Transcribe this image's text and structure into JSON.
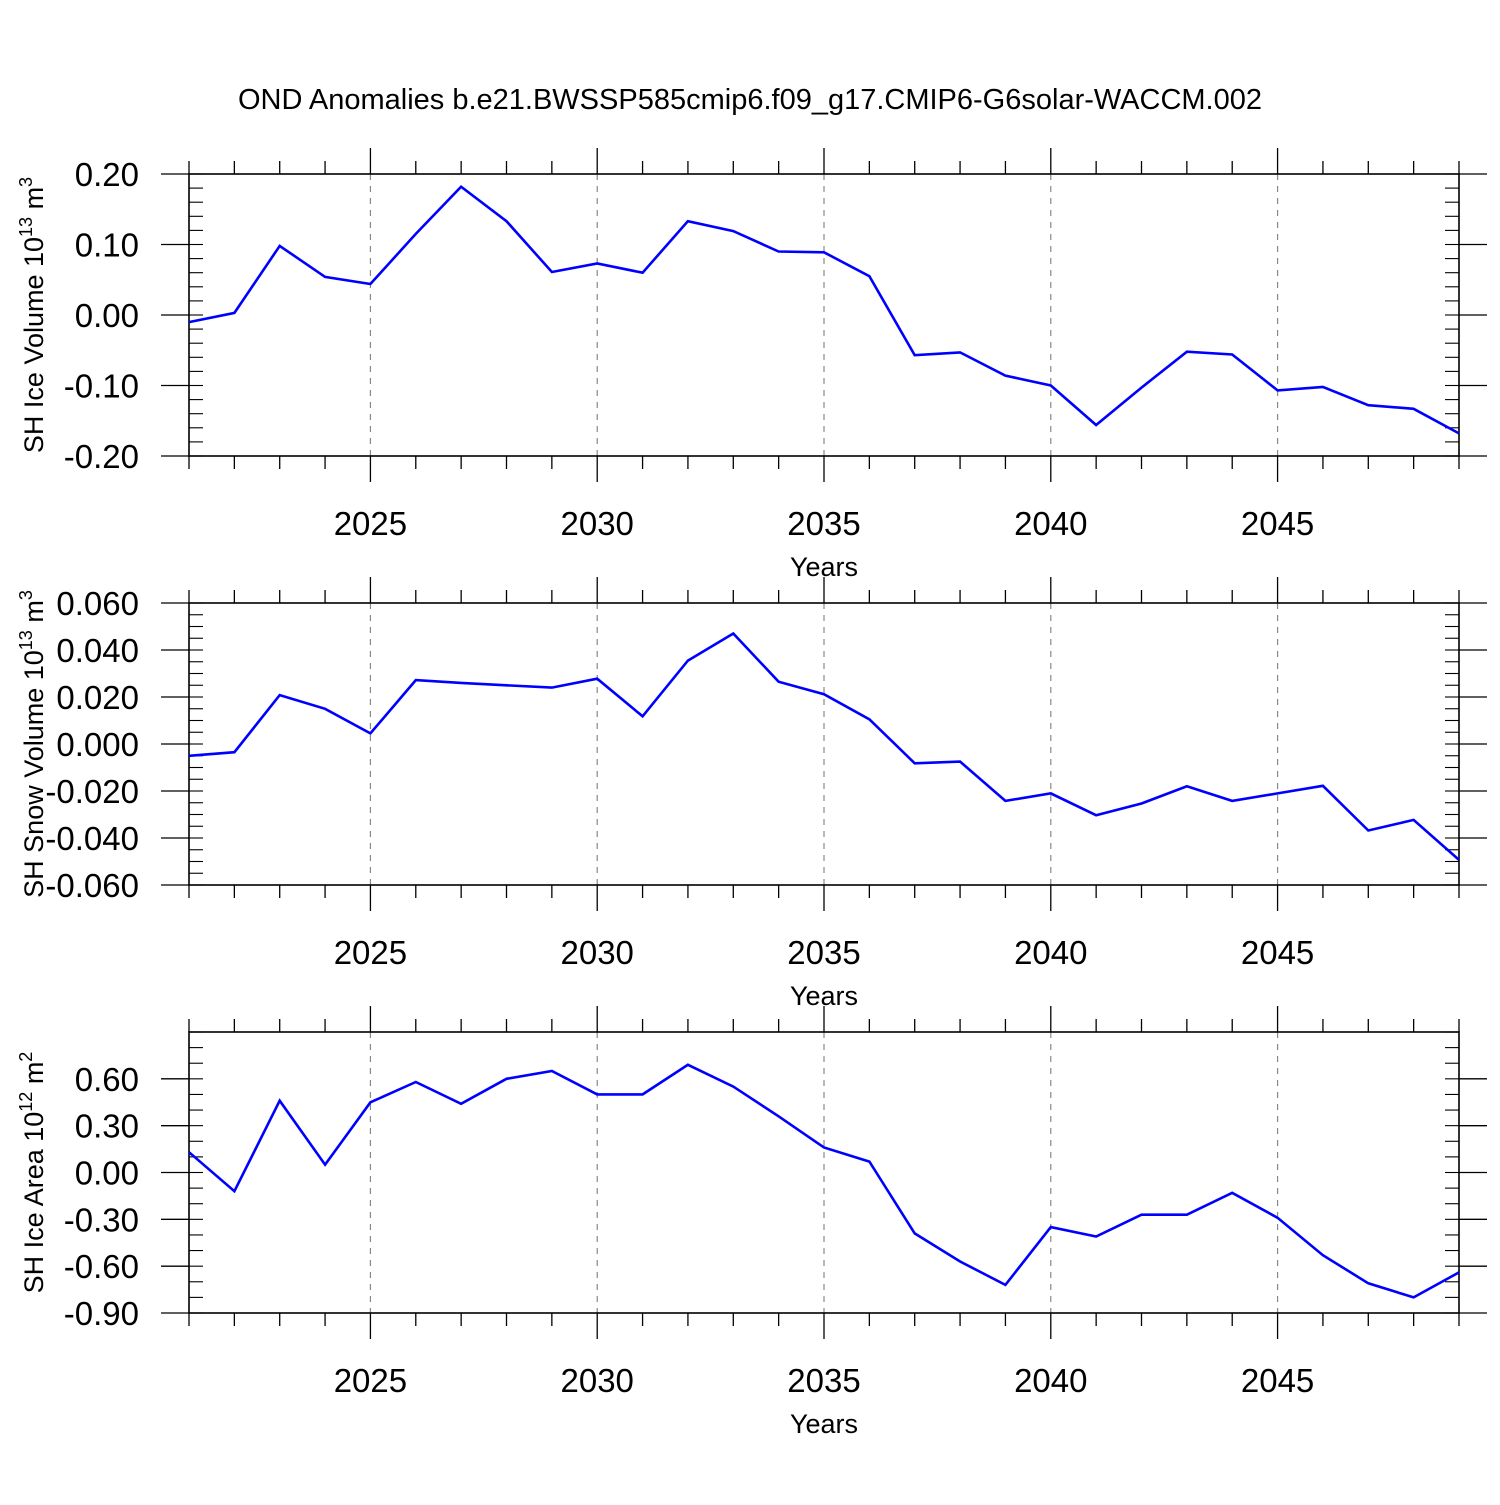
{
  "figure": {
    "title": "OND Anomalies b.e21.BWSSP585cmip6.f09_g17.CMIP6-G6solar-WACCM.002",
    "line_color": "#0000ff",
    "grid_color": "#888888"
  },
  "chart_data": [
    {
      "type": "line",
      "title": "",
      "xlabel": "Years",
      "ylabel_main": "SH Ice Volume 10",
      "ylabel_exp": "13",
      "ylabel_unit": "m",
      "ylabel_unit_exp": "3",
      "xlim": [
        2021,
        2049
      ],
      "ylim": [
        -0.2,
        0.2
      ],
      "xticks": [
        2025,
        2030,
        2035,
        2040,
        2045
      ],
      "yticks": [
        "-0.20",
        "-0.10",
        "0.00",
        "0.10",
        "0.20"
      ],
      "ytick_values": [
        -0.2,
        -0.1,
        0.0,
        0.1,
        0.2
      ],
      "grid": "x dashed at major ticks",
      "series": [
        {
          "x": [
            2021,
            2022,
            2023,
            2024,
            2025,
            2026,
            2027,
            2028,
            2029,
            2030,
            2031,
            2032,
            2033,
            2034,
            2035,
            2036,
            2037,
            2038,
            2039,
            2040,
            2041,
            2042,
            2043,
            2044,
            2045,
            2046,
            2047,
            2048,
            2049
          ],
          "values": [
            -0.01,
            0.003,
            0.098,
            0.054,
            0.044,
            0.115,
            0.182,
            0.133,
            0.061,
            0.073,
            0.06,
            0.133,
            0.119,
            0.09,
            0.089,
            0.055,
            -0.057,
            -0.053,
            -0.086,
            -0.1,
            -0.156,
            -0.103,
            -0.052,
            -0.056,
            -0.107,
            -0.102,
            -0.128,
            -0.133,
            -0.168
          ]
        }
      ]
    },
    {
      "type": "line",
      "title": "",
      "xlabel": "Years",
      "ylabel_main": "SH Snow Volume 10",
      "ylabel_exp": "13",
      "ylabel_unit": "m",
      "ylabel_unit_exp": "3",
      "xlim": [
        2021,
        2049
      ],
      "ylim": [
        -0.06,
        0.06
      ],
      "xticks": [
        2025,
        2030,
        2035,
        2040,
        2045
      ],
      "yticks": [
        "-0.060",
        "-0.040",
        "-0.020",
        "0.000",
        "0.020",
        "0.040",
        "0.060"
      ],
      "ytick_values": [
        -0.06,
        -0.04,
        -0.02,
        0.0,
        0.02,
        0.04,
        0.06
      ],
      "grid": "x dashed at major ticks",
      "series": [
        {
          "x": [
            2021,
            2022,
            2023,
            2024,
            2025,
            2026,
            2027,
            2028,
            2029,
            2030,
            2031,
            2032,
            2033,
            2034,
            2035,
            2036,
            2037,
            2038,
            2039,
            2040,
            2041,
            2042,
            2043,
            2044,
            2045,
            2046,
            2047,
            2048,
            2049
          ],
          "values": [
            -0.005,
            -0.0035,
            0.0208,
            0.015,
            0.0045,
            0.0272,
            0.026,
            0.025,
            0.024,
            0.0278,
            0.0118,
            0.0355,
            0.047,
            0.0265,
            0.0212,
            0.0105,
            -0.0082,
            -0.0075,
            -0.0242,
            -0.021,
            -0.0303,
            -0.0253,
            -0.018,
            -0.0242,
            -0.021,
            -0.0178,
            -0.0368,
            -0.0323,
            -0.0493
          ]
        }
      ]
    },
    {
      "type": "line",
      "title": "",
      "xlabel": "Years",
      "ylabel_main": "SH Ice Area 10",
      "ylabel_exp": "12",
      "ylabel_unit": "m",
      "ylabel_unit_exp": "2",
      "xlim": [
        2021,
        2049
      ],
      "ylim": [
        -0.9,
        0.9
      ],
      "xticks": [
        2025,
        2030,
        2035,
        2040,
        2045
      ],
      "yticks": [
        "-0.90",
        "-0.60",
        "-0.30",
        "0.00",
        "0.30",
        "0.60"
      ],
      "ytick_values": [
        -0.9,
        -0.6,
        -0.3,
        0.0,
        0.3,
        0.6
      ],
      "grid": "x dashed at major ticks",
      "series": [
        {
          "x": [
            2021,
            2022,
            2023,
            2024,
            2025,
            2026,
            2027,
            2028,
            2029,
            2030,
            2031,
            2032,
            2033,
            2034,
            2035,
            2036,
            2037,
            2038,
            2039,
            2040,
            2041,
            2042,
            2043,
            2044,
            2045,
            2046,
            2047,
            2048,
            2049
          ],
          "values": [
            0.13,
            -0.12,
            0.46,
            0.05,
            0.45,
            0.58,
            0.44,
            0.6,
            0.65,
            0.5,
            0.5,
            0.69,
            0.55,
            0.36,
            0.16,
            0.07,
            -0.39,
            -0.57,
            -0.72,
            -0.35,
            -0.41,
            -0.27,
            -0.27,
            -0.13,
            -0.29,
            -0.53,
            -0.71,
            -0.8,
            -0.64
          ]
        }
      ]
    }
  ]
}
